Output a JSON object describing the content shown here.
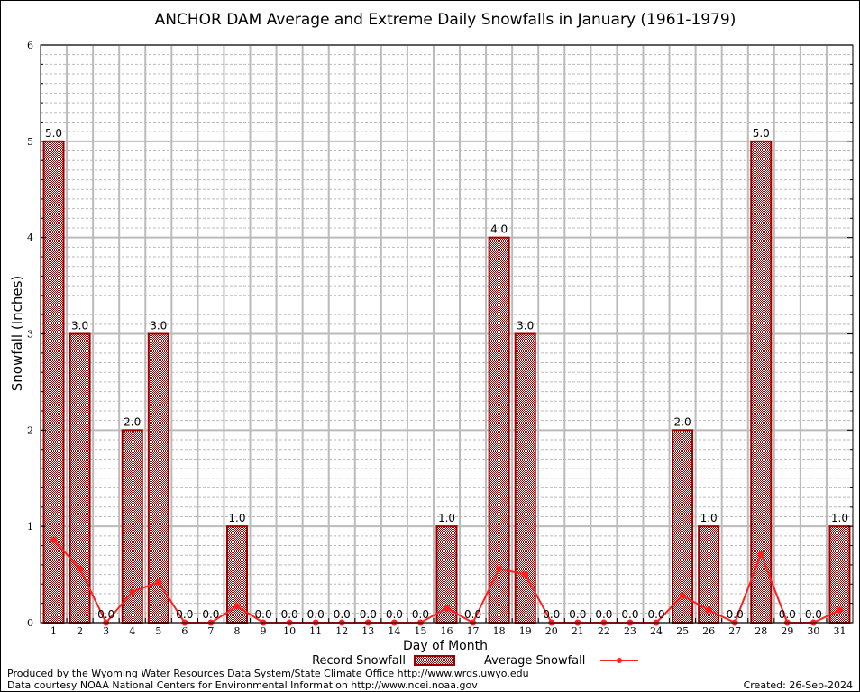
{
  "chart_data": {
    "type": "bar",
    "title": "ANCHOR DAM Average and Extreme Daily Snowfalls in January (1961-1979)",
    "xlabel": "Day of Month",
    "ylabel": "Snowfall (Inches)",
    "ylim": [
      0,
      6
    ],
    "yticks": [
      "0",
      "1",
      "2",
      "3",
      "4",
      "5",
      "6"
    ],
    "grid": true,
    "categories": [
      "1",
      "2",
      "3",
      "4",
      "5",
      "6",
      "7",
      "8",
      "9",
      "10",
      "11",
      "12",
      "13",
      "14",
      "15",
      "16",
      "17",
      "18",
      "19",
      "20",
      "21",
      "22",
      "23",
      "24",
      "25",
      "26",
      "27",
      "28",
      "29",
      "30",
      "31"
    ],
    "series": [
      {
        "name": "Record Snowfall",
        "type": "bar",
        "color": "#a00000",
        "values": [
          5,
          3,
          0,
          2,
          3,
          0,
          0,
          1,
          0,
          0,
          0,
          0,
          0,
          0,
          0,
          1,
          0,
          4,
          3,
          0,
          0,
          0,
          0,
          0,
          2,
          1,
          0,
          5,
          0,
          0,
          1
        ],
        "labels": [
          "5.0",
          "3.0",
          "0.0",
          "2.0",
          "3.0",
          "0.0",
          "0.0",
          "1.0",
          "0.0",
          "0.0",
          "0.0",
          "0.0",
          "0.0",
          "0.0",
          "0.0",
          "1.0",
          "0.0",
          "4.0",
          "3.0",
          "0.0",
          "0.0",
          "0.0",
          "0.0",
          "0.0",
          "2.0",
          "1.0",
          "0.0",
          "5.0",
          "0.0",
          "0.0",
          "1.0"
        ]
      },
      {
        "name": "Average Snowfall",
        "type": "line",
        "color": "#ff2020",
        "values": [
          0.86,
          0.56,
          0,
          0.32,
          0.42,
          0,
          0,
          0.17,
          0,
          0,
          0,
          0,
          0,
          0,
          0,
          0.15,
          0,
          0.56,
          0.5,
          0,
          0,
          0,
          0,
          0,
          0.28,
          0.13,
          0,
          0.71,
          0,
          0,
          0.13
        ]
      }
    ],
    "legend_position": "bottom-center"
  },
  "footer": {
    "produced": "Produced by the Wyoming Water Resources Data System/State Climate Office http://www.wrds.uwyo.edu",
    "courtesy": "Data courtesy NOAA National Centers for Environmental Information http://www.ncei.noaa.gov",
    "created": "Created: 26-Sep-2024"
  }
}
